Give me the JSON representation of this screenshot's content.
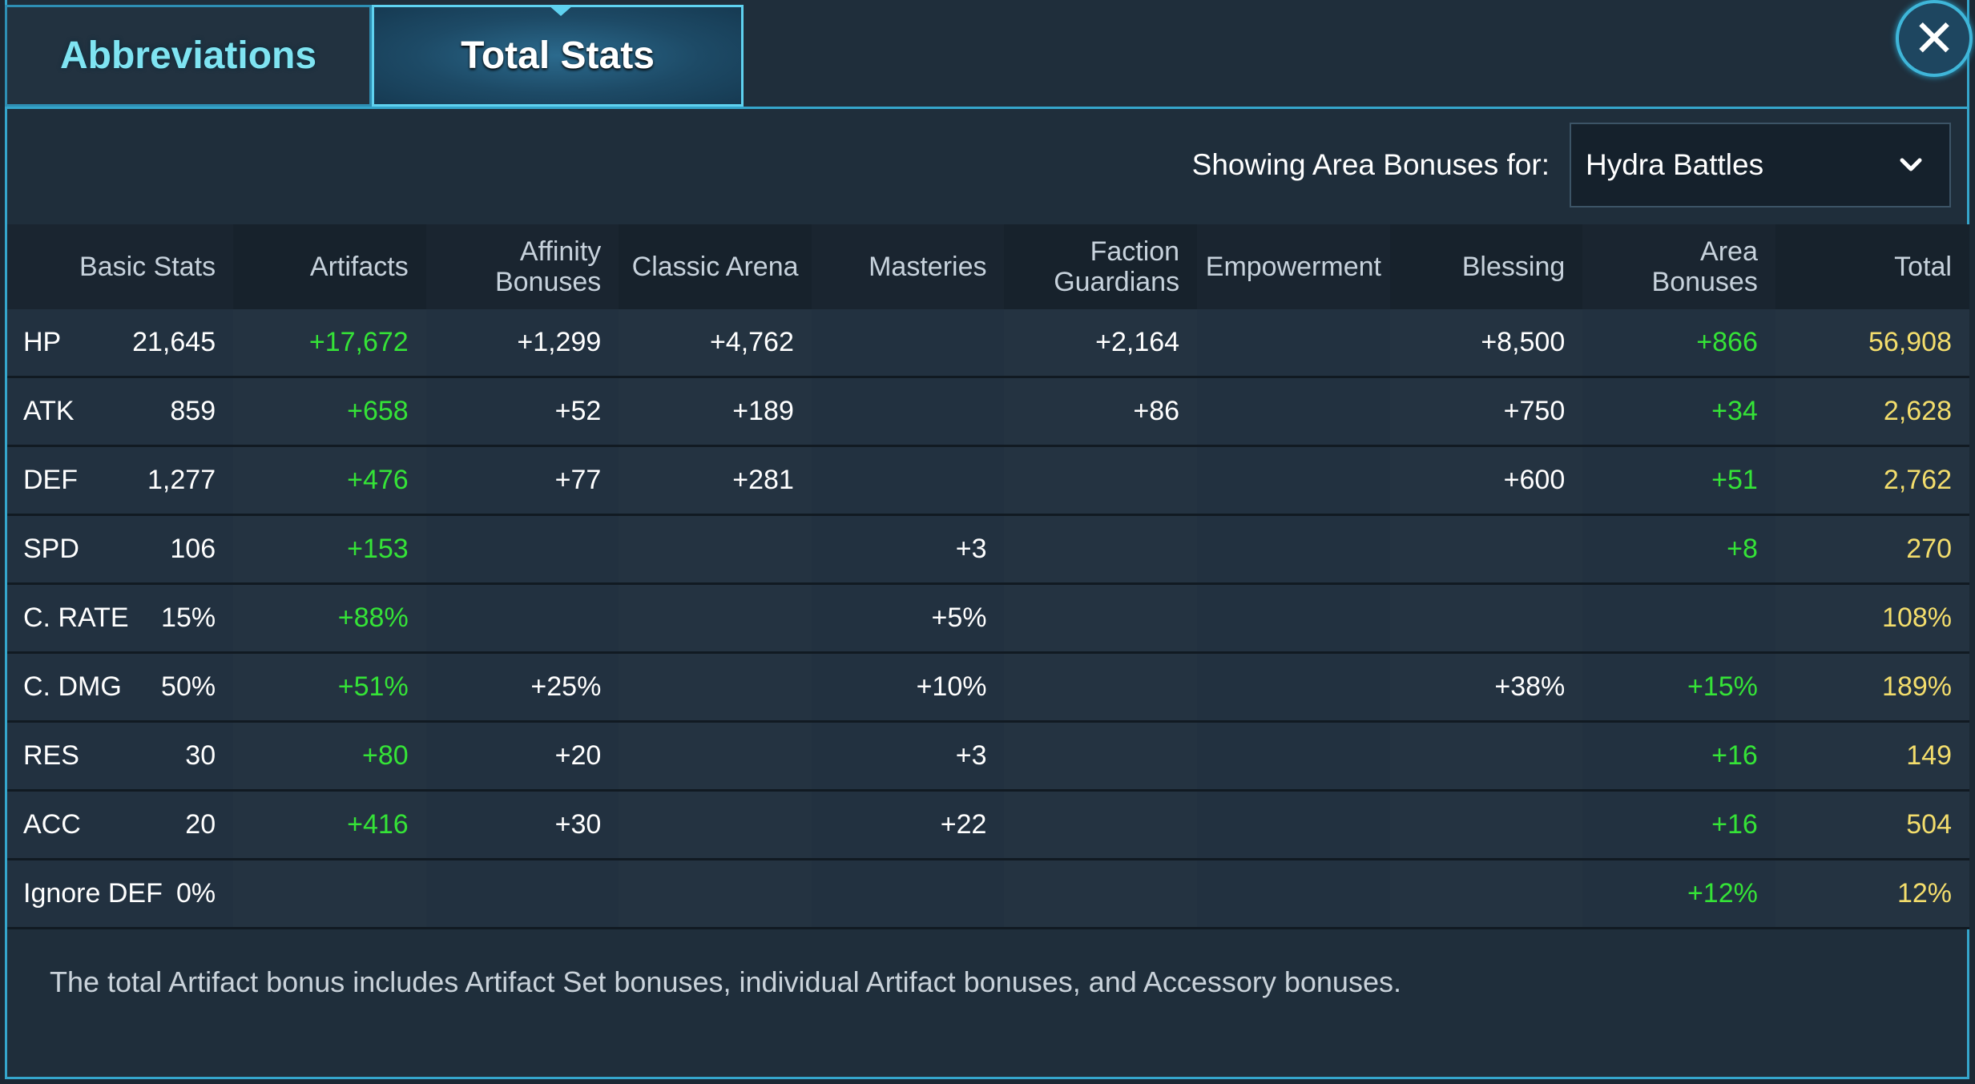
{
  "tabs": [
    {
      "label": "Abbreviations",
      "active": false
    },
    {
      "label": "Total Stats",
      "active": true
    }
  ],
  "close_icon": "close-x-icon",
  "area": {
    "label": "Showing Area Bonuses for:",
    "selected": "Hydra Battles"
  },
  "table": {
    "headers": [
      "Basic Stats",
      "Artifacts",
      "Affinity Bonuses",
      "Classic Arena",
      "Masteries",
      "Faction Guardians",
      "Empowerment",
      "Blessing",
      "Area Bonuses",
      "Total"
    ],
    "header_lines": [
      [
        "Basic Stats"
      ],
      [
        "Artifacts"
      ],
      [
        "Affinity",
        "Bonuses"
      ],
      [
        "Classic Arena"
      ],
      [
        "Masteries"
      ],
      [
        "Faction",
        "Guardians"
      ],
      [
        "Empowerment"
      ],
      [
        "Blessing"
      ],
      [
        "Area",
        "Bonuses"
      ],
      [
        "Total"
      ]
    ],
    "rows": [
      {
        "stat": "HP",
        "basic": "21,645",
        "artifacts": "+17,672",
        "affinity": "+1,299",
        "arena": "+4,762",
        "masteries": "",
        "guardians": "+2,164",
        "empowerment": "",
        "blessing": "+8,500",
        "area": "+866",
        "total": "56,908"
      },
      {
        "stat": "ATK",
        "basic": "859",
        "artifacts": "+658",
        "affinity": "+52",
        "arena": "+189",
        "masteries": "",
        "guardians": "+86",
        "empowerment": "",
        "blessing": "+750",
        "area": "+34",
        "total": "2,628"
      },
      {
        "stat": "DEF",
        "basic": "1,277",
        "artifacts": "+476",
        "affinity": "+77",
        "arena": "+281",
        "masteries": "",
        "guardians": "",
        "empowerment": "",
        "blessing": "+600",
        "area": "+51",
        "total": "2,762"
      },
      {
        "stat": "SPD",
        "basic": "106",
        "artifacts": "+153",
        "affinity": "",
        "arena": "",
        "masteries": "+3",
        "guardians": "",
        "empowerment": "",
        "blessing": "",
        "area": "+8",
        "total": "270"
      },
      {
        "stat": "C. RATE",
        "basic": "15%",
        "artifacts": "+88%",
        "affinity": "",
        "arena": "",
        "masteries": "+5%",
        "guardians": "",
        "empowerment": "",
        "blessing": "",
        "area": "",
        "total": "108%"
      },
      {
        "stat": "C. DMG",
        "basic": "50%",
        "artifacts": "+51%",
        "affinity": "+25%",
        "arena": "",
        "masteries": "+10%",
        "guardians": "",
        "empowerment": "",
        "blessing": "+38%",
        "area": "+15%",
        "total": "189%"
      },
      {
        "stat": "RES",
        "basic": "30",
        "artifacts": "+80",
        "affinity": "+20",
        "arena": "",
        "masteries": "+3",
        "guardians": "",
        "empowerment": "",
        "blessing": "",
        "area": "+16",
        "total": "149"
      },
      {
        "stat": "ACC",
        "basic": "20",
        "artifacts": "+416",
        "affinity": "+30",
        "arena": "",
        "masteries": "+22",
        "guardians": "",
        "empowerment": "",
        "blessing": "",
        "area": "+16",
        "total": "504"
      },
      {
        "stat": "Ignore DEF",
        "basic": "0%",
        "artifacts": "",
        "affinity": "",
        "arena": "",
        "masteries": "",
        "guardians": "",
        "empowerment": "",
        "blessing": "",
        "area": "+12%",
        "total": "12%"
      }
    ]
  },
  "footnote": "The total Artifact bonus includes Artifact Set bonuses, individual Artifact bonuses, and Accessory bonuses.",
  "colors": {
    "accent_border": "#35a6cc",
    "bonus_green": "#35e337",
    "total_gold": "#f3dd6c",
    "tab_inactive_text": "#7fe4f2"
  }
}
